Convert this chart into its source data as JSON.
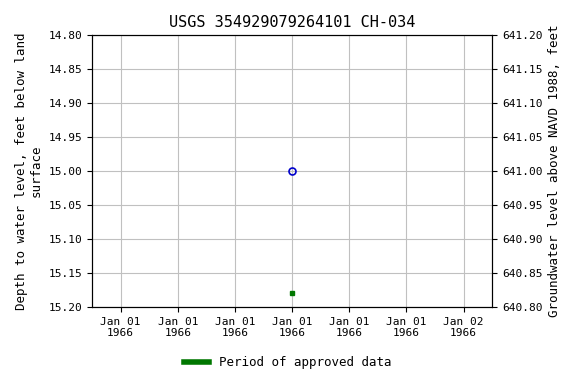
{
  "title": "USGS 354929079264101 CH-034",
  "ylabel_left": "Depth to water level, feet below land\nsurface",
  "ylabel_right": "Groundwater level above NAVD 1988, feet",
  "ylim_left": [
    15.2,
    14.8
  ],
  "ylim_right": [
    640.8,
    641.2
  ],
  "yticks_left": [
    14.8,
    14.85,
    14.9,
    14.95,
    15.0,
    15.05,
    15.1,
    15.15,
    15.2
  ],
  "yticks_right": [
    640.8,
    640.85,
    640.9,
    640.95,
    641.0,
    641.05,
    641.1,
    641.15,
    641.2
  ],
  "data_point_open_value": 15.0,
  "data_point_filled_value": 15.18,
  "open_marker_color": "#0000cc",
  "filled_marker_color": "#007700",
  "legend_label": "Period of approved data",
  "legend_color": "#007700",
  "bg_color": "#ffffff",
  "grid_color": "#c0c0c0",
  "font_family": "monospace",
  "title_fontsize": 11,
  "label_fontsize": 9,
  "tick_fontsize": 8,
  "num_xticks": 7,
  "x_tick_labels": [
    "Jan 01\n1966",
    "Jan 01\n1966",
    "Jan 01\n1966",
    "Jan 01\n1966",
    "Jan 01\n1966",
    "Jan 01\n1966",
    "Jan 02\n1966"
  ]
}
